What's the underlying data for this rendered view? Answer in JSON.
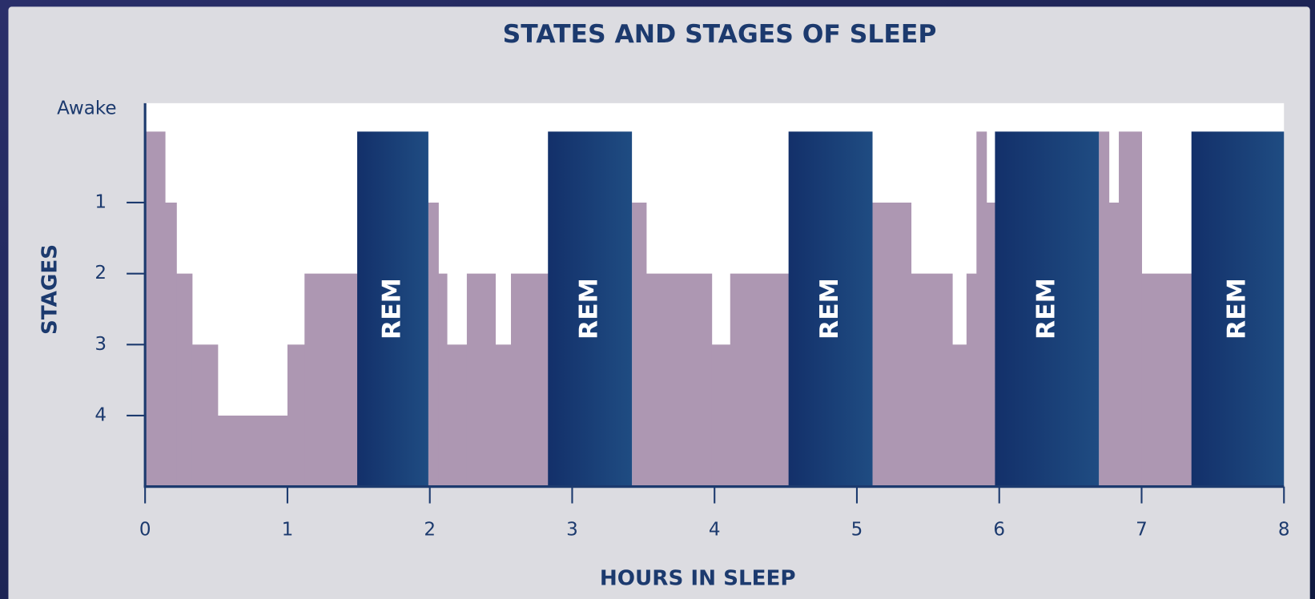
{
  "chart_data": {
    "type": "hypnogram",
    "title": "STATES AND STAGES OF SLEEP",
    "x_label": "HOURS IN SLEEP",
    "y_label": "STAGES",
    "xlim": [
      0,
      8
    ],
    "xticks": [
      0,
      1,
      2,
      3,
      4,
      5,
      6,
      7,
      8
    ],
    "ylim": [
      5,
      -0.4
    ],
    "yticks": [
      {
        "value": 0,
        "label": "Awake"
      },
      1,
      2,
      3,
      4
    ],
    "color": "#ad97b2",
    "rem_color": "#163a72",
    "segments": [
      {
        "start": 0,
        "end": 0.14,
        "stage": 0
      },
      {
        "start": 0.14,
        "end": 0.22,
        "stage": 1
      },
      {
        "start": 0.22,
        "end": 0.33,
        "stage": 2
      },
      {
        "start": 0.33,
        "end": 0.51,
        "stage": 3
      },
      {
        "start": 0.51,
        "end": 1.0,
        "stage": 4
      },
      {
        "start": 1.0,
        "end": 1.12,
        "stage": 3
      },
      {
        "start": 1.12,
        "end": 1.49,
        "stage": 2
      },
      {
        "start": 1.99,
        "end": 2.06,
        "stage": 1
      },
      {
        "start": 2.06,
        "end": 2.12,
        "stage": 2
      },
      {
        "start": 2.12,
        "end": 2.26,
        "stage": 3
      },
      {
        "start": 2.26,
        "end": 2.46,
        "stage": 2
      },
      {
        "start": 2.46,
        "end": 2.57,
        "stage": 3
      },
      {
        "start": 2.57,
        "end": 2.83,
        "stage": 2
      },
      {
        "start": 3.42,
        "end": 3.52,
        "stage": 1
      },
      {
        "start": 3.52,
        "end": 3.98,
        "stage": 2
      },
      {
        "start": 3.98,
        "end": 4.11,
        "stage": 3
      },
      {
        "start": 4.11,
        "end": 4.52,
        "stage": 2
      },
      {
        "start": 5.11,
        "end": 5.38,
        "stage": 1
      },
      {
        "start": 5.38,
        "end": 5.67,
        "stage": 2
      },
      {
        "start": 5.67,
        "end": 5.77,
        "stage": 3
      },
      {
        "start": 5.77,
        "end": 5.84,
        "stage": 2
      },
      {
        "start": 5.84,
        "end": 5.91,
        "stage": 0
      },
      {
        "start": 5.91,
        "end": 5.97,
        "stage": 1
      },
      {
        "start": 6.7,
        "end": 6.77,
        "stage": 0
      },
      {
        "start": 6.77,
        "end": 6.84,
        "stage": 1
      },
      {
        "start": 6.84,
        "end": 7.0,
        "stage": 0
      },
      {
        "start": 7.0,
        "end": 7.35,
        "stage": 2
      }
    ],
    "rem": [
      {
        "start": 1.49,
        "end": 1.99,
        "stage": 0,
        "label": "REM"
      },
      {
        "start": 2.83,
        "end": 3.42,
        "stage": 0,
        "label": "REM"
      },
      {
        "start": 4.52,
        "end": 5.11,
        "stage": 0,
        "label": "REM"
      },
      {
        "start": 5.97,
        "end": 6.7,
        "stage": 0,
        "label": "REM"
      },
      {
        "start": 7.35,
        "end": 8.0,
        "stage": 0,
        "label": "REM"
      }
    ]
  }
}
